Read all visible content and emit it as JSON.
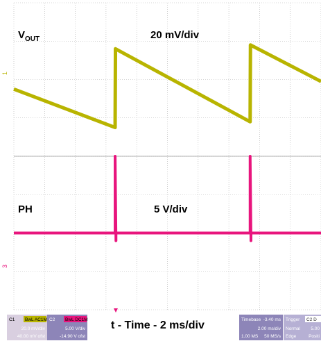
{
  "chart_data": {
    "type": "line",
    "title": "",
    "xlabel": "t - Time - 2 ms/div",
    "ylabel": "",
    "grid": true,
    "x_units": "ms",
    "xlim": [
      -3.0,
      15.2
    ],
    "panels": [
      {
        "name": "VOUT",
        "label_main": "V",
        "label_sub": "OUT",
        "scale_label": "20 mV/div",
        "channel_marker": "1",
        "color": "#b8b400",
        "y_units": "mV",
        "ylim": [
          -40,
          40
        ],
        "series": [
          {
            "x": [
              -3.0,
              3.0,
              3.02,
              11.0,
              11.02,
              15.2
            ],
            "y": [
              -5,
              -25,
              16,
              -22,
              18,
              -1
            ]
          }
        ]
      },
      {
        "name": "PH",
        "label_main": "PH",
        "scale_label": "5 V/div",
        "channel_marker": "3",
        "color": "#e8157d",
        "y_units": "V",
        "ylim": [
          -20,
          20
        ],
        "series": [
          {
            "x": [
              -3.0,
              3.0,
              3.0,
              3.05,
              3.05,
              11.0,
              11.0,
              11.05,
              11.05,
              15.2
            ],
            "y": [
              0,
              0,
              20,
              -2,
              0,
              0,
              20,
              -2,
              0,
              0
            ]
          }
        ]
      }
    ],
    "trigger_marker_x_ms": 3.0
  },
  "info_bar": {
    "c1": {
      "tag": "C1",
      "badge": "BwL AC1M",
      "line1": "20.0 mV/div",
      "line2": "40.00 mV ofst",
      "color": "#b8b400"
    },
    "c2": {
      "tag": "C2",
      "badge": "BwL DC1M",
      "line1": "5.00 V/div",
      "line2": "-14.90 V ofst",
      "color": "#e8157d"
    },
    "timebase": {
      "label": "Timebase",
      "value": "-3.40 ms",
      "line1": "2.00 ms/div",
      "line2a": "1.00 MS",
      "line2b": "50 MS/s"
    },
    "trigger": {
      "label": "Trigger",
      "badge": "C2 D",
      "line1a": "Normal",
      "line1b": "5.00",
      "line2a": "Edge",
      "line2b": "Positi"
    }
  },
  "colors": {
    "grid": "#b0b0b0",
    "info_c1_bg": "#d9cfe0",
    "info_c2_bg": "#8d85b8",
    "info_tb_bg": "#8d85b8",
    "info_tr_bg": "#b6b0d4",
    "trigger_marker": "#e8157d"
  }
}
